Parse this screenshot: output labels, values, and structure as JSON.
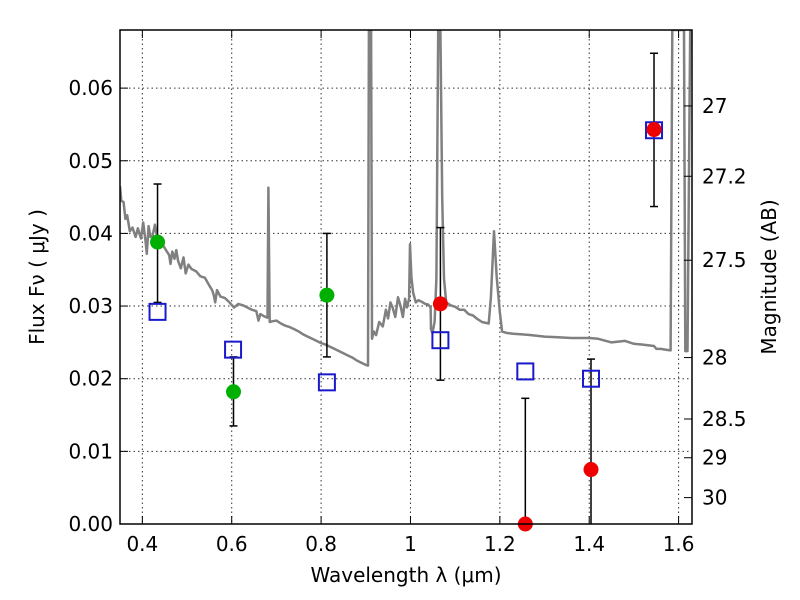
{
  "chart_data": {
    "type": "scatter",
    "xlabel": "Wavelength  λ (μm)",
    "ylabel": "Flux  Fν  ( μJy )",
    "y2label": "Magnitude (AB)",
    "xlim": [
      0.35,
      1.63
    ],
    "ylim": [
      0.0,
      0.068
    ],
    "xticks": [
      0.4,
      0.6,
      0.8,
      1.0,
      1.2,
      1.4,
      1.6
    ],
    "xtick_labels": [
      "0.4",
      "0.6",
      "0.8",
      "1",
      "1.2",
      "1.4",
      "1.6"
    ],
    "yticks": [
      0.0,
      0.01,
      0.02,
      0.03,
      0.04,
      0.05,
      0.06
    ],
    "ytick_labels": [
      "0.00",
      "0.01",
      "0.02",
      "0.03",
      "0.04",
      "0.05",
      "0.06"
    ],
    "mag_ticks": [
      27,
      27.2,
      27.5,
      28,
      28.5,
      29,
      30
    ],
    "mag_tick_labels": [
      "27",
      "27.2",
      "27.5",
      "28",
      "28.5",
      "29",
      "30"
    ],
    "grid": true,
    "colors": {
      "model": "#808080",
      "green": "#00b000",
      "red": "#ee0000",
      "blue": "#1a1acc",
      "errorbar": "#000000"
    },
    "series": [
      {
        "type": "line",
        "color": "#808080",
        "points": [
          [
            0.35,
            0.0465
          ],
          [
            0.353,
            0.0445
          ],
          [
            0.358,
            0.0443
          ],
          [
            0.362,
            0.042
          ],
          [
            0.366,
            0.0425
          ],
          [
            0.372,
            0.0403
          ],
          [
            0.378,
            0.0408
          ],
          [
            0.385,
            0.0395
          ],
          [
            0.39,
            0.0407
          ],
          [
            0.397,
            0.0393
          ],
          [
            0.402,
            0.0415
          ],
          [
            0.407,
            0.039
          ],
          [
            0.41,
            0.0372
          ],
          [
            0.414,
            0.041
          ],
          [
            0.418,
            0.0395
          ],
          [
            0.423,
            0.0397
          ],
          [
            0.428,
            0.0412
          ],
          [
            0.433,
            0.0395
          ],
          [
            0.44,
            0.0385
          ],
          [
            0.448,
            0.0382
          ],
          [
            0.455,
            0.0375
          ],
          [
            0.46,
            0.037
          ],
          [
            0.463,
            0.0358
          ],
          [
            0.467,
            0.0375
          ],
          [
            0.472,
            0.0365
          ],
          [
            0.476,
            0.0377
          ],
          [
            0.48,
            0.0362
          ],
          [
            0.486,
            0.0352
          ],
          [
            0.492,
            0.0367
          ],
          [
            0.497,
            0.0345
          ],
          [
            0.503,
            0.0357
          ],
          [
            0.51,
            0.0351
          ],
          [
            0.52,
            0.0348
          ],
          [
            0.53,
            0.0341
          ],
          [
            0.54,
            0.0339
          ],
          [
            0.55,
            0.0328
          ],
          [
            0.556,
            0.0322
          ],
          [
            0.56,
            0.0315
          ],
          [
            0.563,
            0.0305
          ],
          [
            0.567,
            0.0322
          ],
          [
            0.575,
            0.0313
          ],
          [
            0.585,
            0.0311
          ],
          [
            0.595,
            0.0305
          ],
          [
            0.605,
            0.0298
          ],
          [
            0.615,
            0.0303
          ],
          [
            0.625,
            0.0301
          ],
          [
            0.635,
            0.0298
          ],
          [
            0.645,
            0.0295
          ],
          [
            0.655,
            0.0293
          ],
          [
            0.66,
            0.028
          ],
          [
            0.664,
            0.0289
          ],
          [
            0.672,
            0.0286
          ],
          [
            0.68,
            0.0284
          ],
          [
            0.682,
            0.0463
          ],
          [
            0.685,
            0.0278
          ],
          [
            0.69,
            0.0279
          ],
          [
            0.7,
            0.028
          ],
          [
            0.71,
            0.0276
          ],
          [
            0.72,
            0.0273
          ],
          [
            0.73,
            0.0271
          ],
          [
            0.74,
            0.0268
          ],
          [
            0.75,
            0.0265
          ],
          [
            0.76,
            0.0261
          ],
          [
            0.77,
            0.0258
          ],
          [
            0.78,
            0.0255
          ],
          [
            0.79,
            0.0252
          ],
          [
            0.8,
            0.0249
          ],
          [
            0.81,
            0.0247
          ],
          [
            0.82,
            0.0244
          ],
          [
            0.83,
            0.0241
          ],
          [
            0.84,
            0.0238
          ],
          [
            0.85,
            0.0235
          ],
          [
            0.86,
            0.0232
          ],
          [
            0.87,
            0.0229
          ],
          [
            0.88,
            0.0225
          ],
          [
            0.89,
            0.0222
          ],
          [
            0.9,
            0.0219
          ],
          [
            0.905,
            0.0218
          ],
          [
            0.907,
            0.068
          ],
          [
            0.912,
            0.068
          ],
          [
            0.914,
            0.0255
          ],
          [
            0.918,
            0.0265
          ],
          [
            0.923,
            0.026
          ],
          [
            0.93,
            0.0278
          ],
          [
            0.938,
            0.0272
          ],
          [
            0.945,
            0.0295
          ],
          [
            0.95,
            0.0283
          ],
          [
            0.955,
            0.0305
          ],
          [
            0.96,
            0.0298
          ],
          [
            0.966,
            0.0285
          ],
          [
            0.972,
            0.0312
          ],
          [
            0.978,
            0.03
          ],
          [
            0.983,
            0.0285
          ],
          [
            0.988,
            0.031
          ],
          [
            0.992,
            0.0298
          ],
          [
            0.997,
            0.031
          ],
          [
            0.999,
            0.0385
          ],
          [
            1.002,
            0.034
          ],
          [
            1.006,
            0.0318
          ],
          [
            1.012,
            0.0305
          ],
          [
            1.018,
            0.0308
          ],
          [
            1.025,
            0.0306
          ],
          [
            1.033,
            0.0303
          ],
          [
            1.04,
            0.0302
          ],
          [
            1.045,
            0.0298
          ],
          [
            1.046,
            0.0268
          ],
          [
            1.049,
            0.0263
          ],
          [
            1.054,
            0.0278
          ],
          [
            1.058,
            0.0338
          ],
          [
            1.062,
            0.068
          ],
          [
            1.067,
            0.068
          ],
          [
            1.071,
            0.045
          ],
          [
            1.075,
            0.0338
          ],
          [
            1.08,
            0.0305
          ],
          [
            1.09,
            0.0301
          ],
          [
            1.1,
            0.0299
          ],
          [
            1.11,
            0.0295
          ],
          [
            1.12,
            0.0295
          ],
          [
            1.13,
            0.0289
          ],
          [
            1.14,
            0.0287
          ],
          [
            1.15,
            0.0282
          ],
          [
            1.16,
            0.0278
          ],
          [
            1.175,
            0.0276
          ],
          [
            1.18,
            0.0312
          ],
          [
            1.187,
            0.0403
          ],
          [
            1.193,
            0.034
          ],
          [
            1.2,
            0.0292
          ],
          [
            1.205,
            0.0265
          ],
          [
            1.215,
            0.0263
          ],
          [
            1.23,
            0.0262
          ],
          [
            1.25,
            0.0261
          ],
          [
            1.27,
            0.026
          ],
          [
            1.3,
            0.0258
          ],
          [
            1.33,
            0.0257
          ],
          [
            1.36,
            0.0256
          ],
          [
            1.38,
            0.0256
          ],
          [
            1.4,
            0.0256
          ],
          [
            1.42,
            0.0255
          ],
          [
            1.45,
            0.025
          ],
          [
            1.48,
            0.0252
          ],
          [
            1.5,
            0.0248
          ],
          [
            1.52,
            0.0247
          ],
          [
            1.545,
            0.0245
          ],
          [
            1.55,
            0.0241
          ],
          [
            1.56,
            0.0241
          ],
          [
            1.57,
            0.024
          ],
          [
            1.582,
            0.0239
          ],
          [
            1.586,
            0.068
          ],
          [
            1.6,
            0.068
          ],
          [
            1.612,
            0.068
          ],
          [
            1.615,
            0.0238
          ],
          [
            1.62,
            0.0238
          ],
          [
            1.626,
            0.068
          ]
        ]
      },
      {
        "type": "scatter",
        "marker": "circle",
        "color": "#00b000",
        "points": [
          {
            "x": 0.434,
            "y": 0.0388,
            "yerr": [
              0.0305,
              0.0468
            ]
          },
          {
            "x": 0.604,
            "y": 0.0182,
            "yerr": [
              0.0135,
              0.023
            ]
          },
          {
            "x": 0.813,
            "y": 0.0315,
            "yerr": [
              0.023,
              0.04
            ]
          }
        ]
      },
      {
        "type": "scatter",
        "marker": "circle",
        "color": "#ee0000",
        "points": [
          {
            "x": 1.067,
            "y": 0.0303,
            "yerr": [
              0.0198,
              0.0408
            ]
          },
          {
            "x": 1.257,
            "y": 0.0,
            "yerr": [
              0.0,
              0.0173
            ]
          },
          {
            "x": 1.404,
            "y": 0.0075,
            "yerr": [
              0.0,
              0.0227
            ]
          },
          {
            "x": 1.545,
            "y": 0.0543,
            "yerr": [
              0.0437,
              0.0648
            ]
          }
        ]
      },
      {
        "type": "scatter",
        "marker": "open-square",
        "color": "#1a1acc",
        "points": [
          {
            "x": 0.434,
            "y": 0.0292
          },
          {
            "x": 0.603,
            "y": 0.024
          },
          {
            "x": 0.813,
            "y": 0.0195
          },
          {
            "x": 1.067,
            "y": 0.0253
          },
          {
            "x": 1.257,
            "y": 0.021
          },
          {
            "x": 1.404,
            "y": 0.02
          },
          {
            "x": 1.545,
            "y": 0.0542
          }
        ]
      }
    ]
  }
}
